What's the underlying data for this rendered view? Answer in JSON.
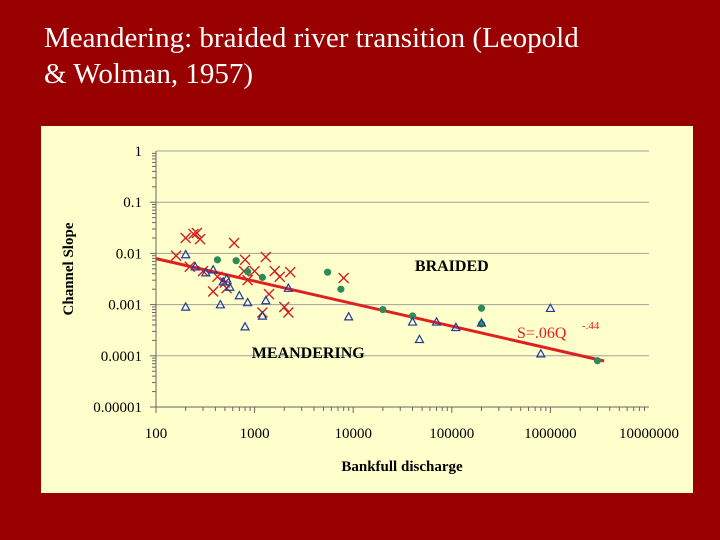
{
  "slide": {
    "title_line1": "Meandering: braided river transition (Leopold",
    "title_line2": "& Wolman, 1957)"
  },
  "chart_data": {
    "type": "scatter",
    "xlabel": "Bankfull discharge",
    "ylabel": "Channel Slope",
    "x_scale": "log",
    "y_scale": "log",
    "xlim": [
      100,
      10000000
    ],
    "ylim": [
      1e-05,
      1
    ],
    "x_ticks": [
      "100",
      "1000",
      "10000",
      "100000",
      "1000000",
      "10000000"
    ],
    "y_ticks": [
      "1",
      "0.1",
      "0.01",
      "0.001",
      "0.0001",
      "0.00001"
    ],
    "grid": "horizontal",
    "annotations": [
      {
        "text": "BRAIDED",
        "x": 100000,
        "y": 0.0045
      },
      {
        "text": "MEANDERING",
        "x": 3500,
        "y": 9e-05
      }
    ],
    "fit_line": {
      "label": "S=.06Q",
      "exponent_label": "-.44",
      "coef": 0.06,
      "exponent": -0.44,
      "color": "#e02020",
      "x_range": [
        100,
        3500000
      ]
    },
    "series": [
      {
        "marker": "x",
        "color": "#cc2222",
        "points": [
          [
            160,
            0.009
          ],
          [
            200,
            0.02
          ],
          [
            240,
            0.024
          ],
          [
            260,
            0.025
          ],
          [
            280,
            0.019
          ],
          [
            220,
            0.0055
          ],
          [
            300,
            0.0045
          ],
          [
            420,
            0.0035
          ],
          [
            380,
            0.0018
          ],
          [
            500,
            0.0027
          ],
          [
            520,
            0.0021
          ],
          [
            620,
            0.016
          ],
          [
            800,
            0.0075
          ],
          [
            780,
            0.0045
          ],
          [
            1000,
            0.0045
          ],
          [
            850,
            0.003
          ],
          [
            1300,
            0.0085
          ],
          [
            1600,
            0.0045
          ],
          [
            1800,
            0.0035
          ],
          [
            2300,
            0.0043
          ],
          [
            1200,
            0.0007
          ],
          [
            2000,
            0.0009
          ],
          [
            2200,
            0.0007
          ],
          [
            1400,
            0.0016
          ],
          [
            8000,
            0.0033
          ]
        ]
      },
      {
        "marker": "dot",
        "color": "#2e8b57",
        "points": [
          [
            420,
            0.0075
          ],
          [
            650,
            0.0072
          ],
          [
            850,
            0.0044
          ],
          [
            1200,
            0.0034
          ],
          [
            5500,
            0.0043
          ],
          [
            7500,
            0.002
          ],
          [
            20000,
            0.0008
          ],
          [
            40000,
            0.0006
          ],
          [
            200000,
            0.00085
          ],
          [
            200000,
            0.00042
          ],
          [
            3000000,
            8e-05
          ]
        ]
      },
      {
        "marker": "triangle",
        "color": "#1e3a9c",
        "points": [
          [
            200,
            0.0095
          ],
          [
            250,
            0.0055
          ],
          [
            320,
            0.0042
          ],
          [
            380,
            0.0048
          ],
          [
            480,
            0.0028
          ],
          [
            520,
            0.0032
          ],
          [
            560,
            0.0022
          ],
          [
            700,
            0.0015
          ],
          [
            850,
            0.0011
          ],
          [
            1300,
            0.0012
          ],
          [
            200,
            0.0009
          ],
          [
            450,
            0.001
          ],
          [
            800,
            0.00037
          ],
          [
            1200,
            0.0006
          ],
          [
            2200,
            0.0021
          ],
          [
            9000,
            0.00058
          ],
          [
            40000,
            0.00046
          ],
          [
            47000,
            0.00021
          ],
          [
            70000,
            0.00046
          ],
          [
            110000,
            0.00036
          ],
          [
            200000,
            0.00044
          ],
          [
            1000000,
            0.00085
          ],
          [
            800000,
            0.00011
          ]
        ]
      }
    ]
  }
}
